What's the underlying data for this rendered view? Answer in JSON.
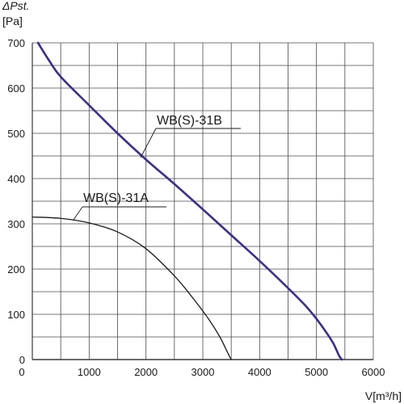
{
  "chart_data": {
    "type": "line",
    "title": "",
    "ylabel_line1": "ΔPst.",
    "ylabel_line2": "[Pa]",
    "xlabel": "V[m³/h]",
    "xlim": [
      0,
      6000
    ],
    "ylim": [
      0,
      700
    ],
    "x_ticks": [
      0,
      1000,
      2000,
      3000,
      4000,
      5000,
      6000
    ],
    "y_ticks": [
      0,
      100,
      200,
      300,
      400,
      500,
      600,
      700
    ],
    "x_grid_step": 500,
    "y_grid_step": 50,
    "grid": true,
    "series": [
      {
        "name": "WB(S)-31A",
        "color": "#1a1a1a",
        "label_anchor": [
          2000,
          335
        ],
        "x": [
          0,
          500,
          1000,
          1500,
          2000,
          2500,
          2800,
          3100,
          3300,
          3450,
          3500
        ],
        "y": [
          315,
          312,
          302,
          282,
          245,
          185,
          140,
          90,
          50,
          12,
          0
        ]
      },
      {
        "name": "WB(S)-31B",
        "color": "#3a2f8c",
        "label_anchor": [
          2550,
          515
        ],
        "x": [
          100,
          300,
          500,
          1000,
          1500,
          2000,
          2500,
          3000,
          3500,
          4000,
          4500,
          4800,
          5000,
          5200,
          5300,
          5400,
          5450
        ],
        "y": [
          700,
          660,
          625,
          562,
          500,
          442,
          388,
          332,
          275,
          218,
          158,
          120,
          90,
          55,
          35,
          8,
          0
        ]
      }
    ]
  }
}
